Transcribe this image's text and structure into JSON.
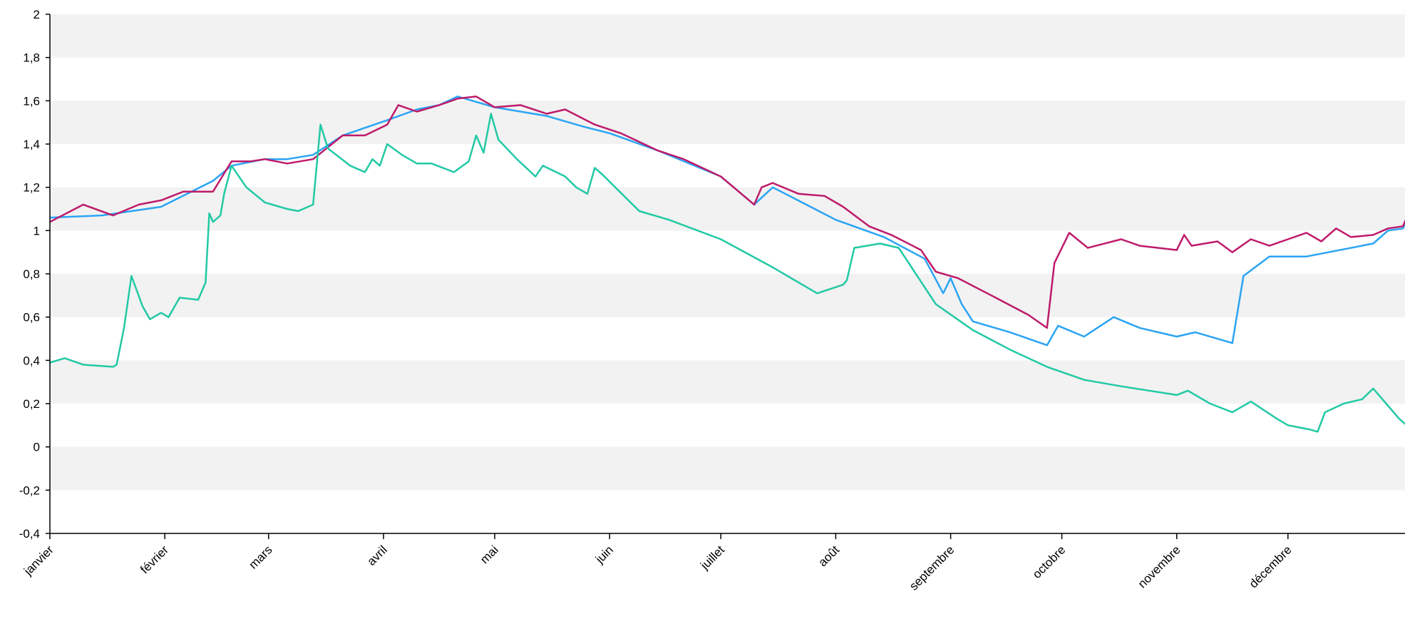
{
  "chart_data": {
    "type": "line",
    "title": "",
    "xlabel": "",
    "ylabel": "",
    "ylim": [
      -0.4,
      2
    ],
    "y_ticks": [
      "2",
      "1,8",
      "1,6",
      "1,4",
      "1,2",
      "1",
      "0,8",
      "0,6",
      "0,4",
      "0,2",
      "0",
      "-0,2",
      "-0,4"
    ],
    "x_ticks": [
      "janvier",
      "février",
      "mars",
      "avril",
      "mai",
      "juin",
      "juillet",
      "août",
      "septembre",
      "octobre",
      "novembre",
      "décembre"
    ],
    "grid": "alternating horizontal bands",
    "legend": "none",
    "x_unit": "day of year (1-365)",
    "series": [
      {
        "color": "#2aa4f4",
        "points": [
          [
            1,
            1.06
          ],
          [
            15,
            1.07
          ],
          [
            31,
            1.11
          ],
          [
            45,
            1.23
          ],
          [
            50,
            1.3
          ],
          [
            59,
            1.33
          ],
          [
            65,
            1.33
          ],
          [
            72,
            1.35
          ],
          [
            80,
            1.44
          ],
          [
            92,
            1.51
          ],
          [
            100,
            1.56
          ],
          [
            106,
            1.58
          ],
          [
            111,
            1.62
          ],
          [
            121,
            1.57
          ],
          [
            135,
            1.53
          ],
          [
            145,
            1.48
          ],
          [
            152,
            1.45
          ],
          [
            165,
            1.37
          ],
          [
            182,
            1.25
          ],
          [
            191,
            1.12
          ],
          [
            196,
            1.2
          ],
          [
            213,
            1.05
          ],
          [
            226,
            0.97
          ],
          [
            237,
            0.87
          ],
          [
            242,
            0.71
          ],
          [
            244,
            0.78
          ],
          [
            247,
            0.66
          ],
          [
            250,
            0.58
          ],
          [
            260,
            0.53
          ],
          [
            270,
            0.47
          ],
          [
            273,
            0.56
          ],
          [
            280,
            0.51
          ],
          [
            288,
            0.6
          ],
          [
            295,
            0.55
          ],
          [
            305,
            0.51
          ],
          [
            310,
            0.53
          ],
          [
            320,
            0.48
          ],
          [
            323,
            0.79
          ],
          [
            330,
            0.88
          ],
          [
            340,
            0.88
          ],
          [
            358,
            0.94
          ],
          [
            362,
            1.0
          ],
          [
            366,
            1.01
          ],
          [
            371,
            1.2
          ],
          [
            375,
            1.22
          ]
        ]
      },
      {
        "color": "#be1b6a",
        "points": [
          [
            1,
            1.04
          ],
          [
            10,
            1.12
          ],
          [
            18,
            1.07
          ],
          [
            25,
            1.12
          ],
          [
            31,
            1.14
          ],
          [
            37,
            1.18
          ],
          [
            45,
            1.18
          ],
          [
            50,
            1.32
          ],
          [
            55,
            1.32
          ],
          [
            59,
            1.33
          ],
          [
            65,
            1.31
          ],
          [
            72,
            1.33
          ],
          [
            80,
            1.44
          ],
          [
            86,
            1.44
          ],
          [
            92,
            1.49
          ],
          [
            95,
            1.58
          ],
          [
            100,
            1.55
          ],
          [
            106,
            1.58
          ],
          [
            111,
            1.61
          ],
          [
            116,
            1.62
          ],
          [
            121,
            1.57
          ],
          [
            128,
            1.58
          ],
          [
            135,
            1.54
          ],
          [
            140,
            1.56
          ],
          [
            148,
            1.49
          ],
          [
            155,
            1.45
          ],
          [
            165,
            1.37
          ],
          [
            172,
            1.33
          ],
          [
            182,
            1.25
          ],
          [
            191,
            1.12
          ],
          [
            193,
            1.2
          ],
          [
            196,
            1.22
          ],
          [
            203,
            1.17
          ],
          [
            210,
            1.16
          ],
          [
            215,
            1.11
          ],
          [
            222,
            1.02
          ],
          [
            228,
            0.98
          ],
          [
            236,
            0.91
          ],
          [
            238,
            0.86
          ],
          [
            240,
            0.81
          ],
          [
            246,
            0.78
          ],
          [
            255,
            0.7
          ],
          [
            265,
            0.61
          ],
          [
            270,
            0.55
          ],
          [
            272,
            0.85
          ],
          [
            276,
            0.99
          ],
          [
            281,
            0.92
          ],
          [
            290,
            0.96
          ],
          [
            295,
            0.93
          ],
          [
            305,
            0.91
          ],
          [
            307,
            0.98
          ],
          [
            309,
            0.93
          ],
          [
            316,
            0.95
          ],
          [
            320,
            0.9
          ],
          [
            325,
            0.96
          ],
          [
            330,
            0.93
          ],
          [
            335,
            0.96
          ],
          [
            340,
            0.99
          ],
          [
            344,
            0.95
          ],
          [
            348,
            1.01
          ],
          [
            352,
            0.97
          ],
          [
            358,
            0.98
          ],
          [
            362,
            1.01
          ],
          [
            366,
            1.02
          ],
          [
            371,
            1.21
          ],
          [
            375,
            1.23
          ]
        ]
      },
      {
        "color": "#22c9a4",
        "points": [
          [
            1,
            0.39
          ],
          [
            5,
            0.41
          ],
          [
            10,
            0.38
          ],
          [
            18,
            0.37
          ],
          [
            19,
            0.38
          ],
          [
            21,
            0.55
          ],
          [
            23,
            0.79
          ],
          [
            26,
            0.65
          ],
          [
            28,
            0.59
          ],
          [
            31,
            0.62
          ],
          [
            33,
            0.6
          ],
          [
            36,
            0.69
          ],
          [
            41,
            0.68
          ],
          [
            43,
            0.76
          ],
          [
            44,
            1.08
          ],
          [
            45,
            1.04
          ],
          [
            47,
            1.07
          ],
          [
            48,
            1.17
          ],
          [
            50,
            1.3
          ],
          [
            54,
            1.2
          ],
          [
            59,
            1.13
          ],
          [
            65,
            1.1
          ],
          [
            68,
            1.09
          ],
          [
            72,
            1.12
          ],
          [
            74,
            1.49
          ],
          [
            76,
            1.38
          ],
          [
            82,
            1.3
          ],
          [
            86,
            1.27
          ],
          [
            88,
            1.33
          ],
          [
            90,
            1.3
          ],
          [
            92,
            1.4
          ],
          [
            96,
            1.35
          ],
          [
            100,
            1.31
          ],
          [
            104,
            1.31
          ],
          [
            110,
            1.27
          ],
          [
            114,
            1.32
          ],
          [
            116,
            1.44
          ],
          [
            118,
            1.36
          ],
          [
            120,
            1.54
          ],
          [
            122,
            1.42
          ],
          [
            127,
            1.33
          ],
          [
            132,
            1.25
          ],
          [
            134,
            1.3
          ],
          [
            140,
            1.25
          ],
          [
            143,
            1.2
          ],
          [
            146,
            1.17
          ],
          [
            148,
            1.29
          ],
          [
            150,
            1.26
          ],
          [
            160,
            1.09
          ],
          [
            168,
            1.05
          ],
          [
            182,
            0.96
          ],
          [
            196,
            0.83
          ],
          [
            208,
            0.71
          ],
          [
            215,
            0.75
          ],
          [
            216,
            0.77
          ],
          [
            218,
            0.92
          ],
          [
            225,
            0.94
          ],
          [
            230,
            0.92
          ],
          [
            240,
            0.66
          ],
          [
            245,
            0.6
          ],
          [
            250,
            0.54
          ],
          [
            260,
            0.45
          ],
          [
            270,
            0.37
          ],
          [
            280,
            0.31
          ],
          [
            290,
            0.28
          ],
          [
            305,
            0.24
          ],
          [
            308,
            0.26
          ],
          [
            314,
            0.2
          ],
          [
            320,
            0.16
          ],
          [
            325,
            0.21
          ],
          [
            332,
            0.13
          ],
          [
            335,
            0.1
          ],
          [
            338,
            0.09
          ],
          [
            341,
            0.08
          ],
          [
            343,
            0.07
          ],
          [
            345,
            0.16
          ],
          [
            350,
            0.2
          ],
          [
            355,
            0.22
          ],
          [
            358,
            0.27
          ],
          [
            362,
            0.19
          ],
          [
            365,
            0.13
          ],
          [
            367,
            0.1
          ],
          [
            370,
            0.12
          ],
          [
            375,
            0.04
          ]
        ]
      }
    ]
  }
}
